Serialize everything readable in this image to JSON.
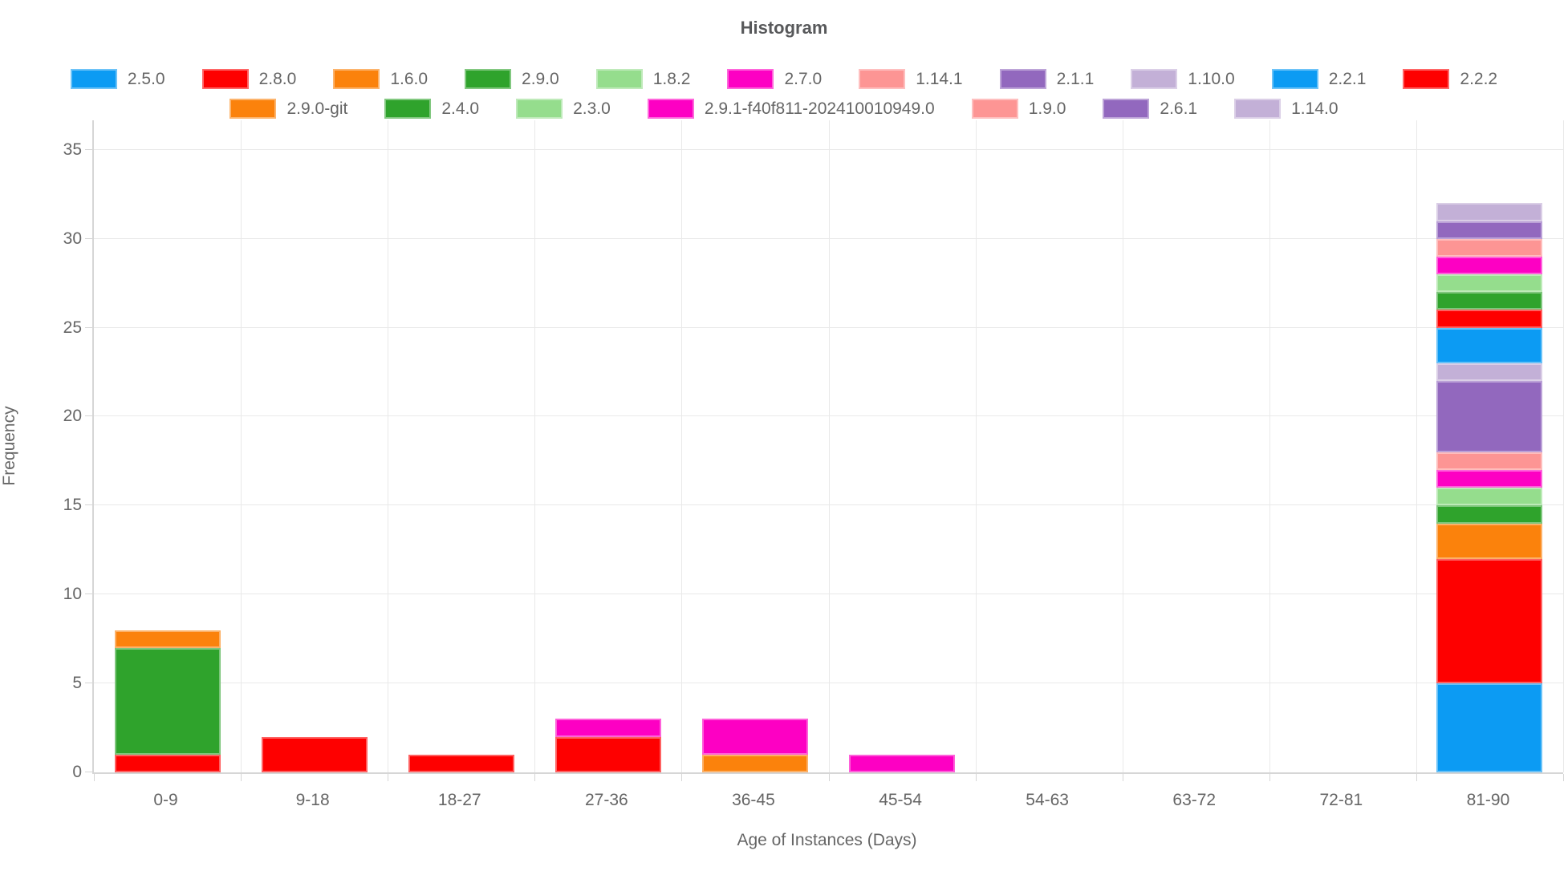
{
  "title": "Histogram",
  "colors": {
    "title_text": "#58595b",
    "tick_text": "#666666",
    "grid": "#e9e9e9",
    "axis": "#d6d6d6",
    "background": "#ffffff"
  },
  "chart_data": {
    "type": "bar",
    "stacked": true,
    "title": "Histogram",
    "xlabel": "Age of Instances (Days)",
    "ylabel": "Frequency",
    "ylim": [
      0,
      35
    ],
    "y_ticks": [
      0,
      5,
      10,
      15,
      20,
      25,
      30,
      35
    ],
    "grid": true,
    "legend_position": "top",
    "legend_row_split": 11,
    "categories": [
      "0-9",
      "9-18",
      "18-27",
      "27-36",
      "36-45",
      "45-54",
      "54-63",
      "63-72",
      "72-81",
      "81-90"
    ],
    "bin_totals": [
      8,
      2,
      1,
      3,
      3,
      1,
      0,
      0,
      0,
      32
    ],
    "series": [
      {
        "name": "2.5.0",
        "color": "#0c9bf3",
        "values": [
          0,
          0,
          0,
          0,
          0,
          0,
          0,
          0,
          0,
          5
        ]
      },
      {
        "name": "2.8.0",
        "color": "#fe0000",
        "values": [
          1,
          2,
          1,
          2,
          0,
          0,
          0,
          0,
          0,
          7
        ]
      },
      {
        "name": "1.6.0",
        "color": "#fb820c",
        "values": [
          0,
          0,
          0,
          0,
          1,
          0,
          0,
          0,
          0,
          2
        ]
      },
      {
        "name": "2.9.0",
        "color": "#2fa32c",
        "values": [
          6,
          0,
          0,
          0,
          0,
          0,
          0,
          0,
          0,
          1
        ]
      },
      {
        "name": "1.8.2",
        "color": "#95dd8d",
        "values": [
          0,
          0,
          0,
          0,
          0,
          0,
          0,
          0,
          0,
          1
        ]
      },
      {
        "name": "2.7.0",
        "color": "#fd00c3",
        "values": [
          0,
          0,
          0,
          1,
          2,
          1,
          0,
          0,
          0,
          1
        ]
      },
      {
        "name": "1.14.1",
        "color": "#fd9594",
        "values": [
          0,
          0,
          0,
          0,
          0,
          0,
          0,
          0,
          0,
          1
        ]
      },
      {
        "name": "2.1.1",
        "color": "#9268be",
        "values": [
          0,
          0,
          0,
          0,
          0,
          0,
          0,
          0,
          0,
          4
        ]
      },
      {
        "name": "1.10.0",
        "color": "#c3b0d7",
        "values": [
          0,
          0,
          0,
          0,
          0,
          0,
          0,
          0,
          0,
          1
        ]
      },
      {
        "name": "2.2.1",
        "color": "#0c9bf3",
        "values": [
          0,
          0,
          0,
          0,
          0,
          0,
          0,
          0,
          0,
          2
        ]
      },
      {
        "name": "2.2.2",
        "color": "#fe0000",
        "values": [
          0,
          0,
          0,
          0,
          0,
          0,
          0,
          0,
          0,
          1
        ]
      },
      {
        "name": "2.9.0-git",
        "color": "#fb820c",
        "values": [
          1,
          0,
          0,
          0,
          0,
          0,
          0,
          0,
          0,
          0
        ]
      },
      {
        "name": "2.4.0",
        "color": "#2fa32c",
        "values": [
          0,
          0,
          0,
          0,
          0,
          0,
          0,
          0,
          0,
          1
        ]
      },
      {
        "name": "2.3.0",
        "color": "#95dd8d",
        "values": [
          0,
          0,
          0,
          0,
          0,
          0,
          0,
          0,
          0,
          1
        ]
      },
      {
        "name": "2.9.1-f40f811-202410010949.0",
        "color": "#fd00c3",
        "values": [
          0,
          0,
          0,
          0,
          0,
          0,
          0,
          0,
          0,
          1
        ]
      },
      {
        "name": "1.9.0",
        "color": "#fd9594",
        "values": [
          0,
          0,
          0,
          0,
          0,
          0,
          0,
          0,
          0,
          1
        ]
      },
      {
        "name": "2.6.1",
        "color": "#9268be",
        "values": [
          0,
          0,
          0,
          0,
          0,
          0,
          0,
          0,
          0,
          1
        ]
      },
      {
        "name": "1.14.0",
        "color": "#c3b0d7",
        "values": [
          0,
          0,
          0,
          0,
          0,
          0,
          0,
          0,
          0,
          1
        ]
      }
    ]
  }
}
